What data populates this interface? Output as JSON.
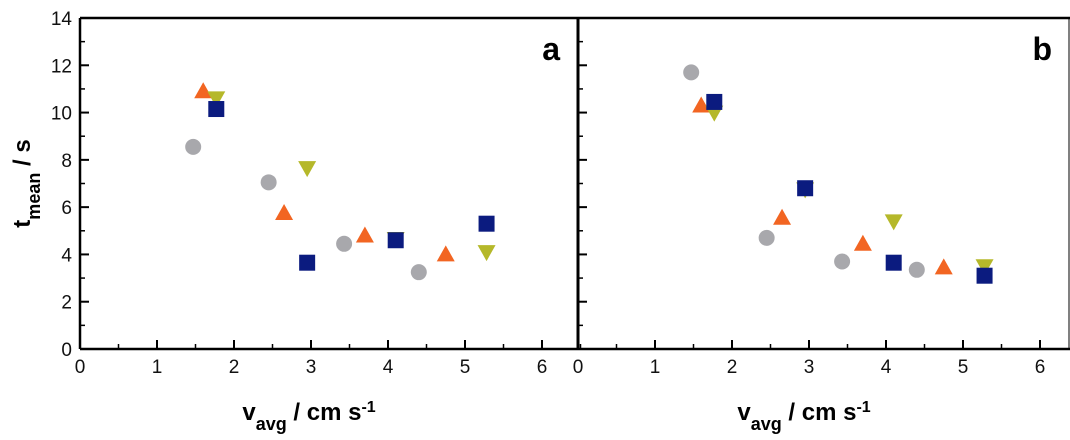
{
  "chart_data": [
    {
      "type": "scatter",
      "panel_label": "a",
      "xlabel": {
        "main": "v",
        "sub": "avg",
        "unit": " / cm s",
        "sup": "-1"
      },
      "ylabel": {
        "main": "t",
        "sub": "mean",
        "unit": " / s"
      },
      "xlim": [
        0,
        6.5
      ],
      "ylim": [
        0,
        14
      ],
      "xticks": [
        0,
        1,
        2,
        3,
        4,
        5,
        6
      ],
      "yticks": [
        0,
        2,
        4,
        6,
        8,
        10,
        12,
        14
      ],
      "grid": false,
      "series": [
        {
          "marker": "circle",
          "color": "#a8a8ac",
          "points": [
            [
              1.47,
              8.55
            ],
            [
              2.45,
              7.05
            ],
            [
              3.43,
              4.45
            ],
            [
              4.4,
              3.25
            ]
          ]
        },
        {
          "marker": "triangle-up",
          "color": "#f26522",
          "points": [
            [
              1.6,
              10.9
            ],
            [
              2.65,
              5.75
            ],
            [
              3.7,
              4.8
            ],
            [
              4.75,
              4.0
            ]
          ]
        },
        {
          "marker": "triangle-down",
          "color": "#b5b82a",
          "points": [
            [
              1.77,
              10.6
            ],
            [
              2.95,
              7.65
            ],
            [
              4.1,
              4.65
            ],
            [
              5.28,
              4.1
            ]
          ]
        },
        {
          "marker": "square",
          "color": "#0b1b7f",
          "points": [
            [
              1.77,
              10.15
            ],
            [
              2.95,
              3.65
            ],
            [
              4.1,
              4.6
            ],
            [
              5.28,
              5.3
            ]
          ]
        }
      ]
    },
    {
      "type": "scatter",
      "panel_label": "b",
      "xlabel": {
        "main": "v",
        "sub": "avg",
        "unit": " / cm s",
        "sup": "-1"
      },
      "xlim": [
        0,
        6.5
      ],
      "ylim": [
        0,
        14
      ],
      "xticks": [
        0,
        1,
        2,
        3,
        4,
        5,
        6
      ],
      "grid": false,
      "series": [
        {
          "marker": "circle",
          "color": "#a8a8ac",
          "points": [
            [
              1.47,
              11.7
            ],
            [
              2.45,
              4.7
            ],
            [
              3.43,
              3.7
            ],
            [
              4.4,
              3.35
            ]
          ]
        },
        {
          "marker": "triangle-up",
          "color": "#f26522",
          "points": [
            [
              1.6,
              10.3
            ],
            [
              2.65,
              5.55
            ],
            [
              3.7,
              4.45
            ],
            [
              4.75,
              3.45
            ]
          ]
        },
        {
          "marker": "triangle-down",
          "color": "#b5b82a",
          "points": [
            [
              1.77,
              10.0
            ],
            [
              2.95,
              6.75
            ],
            [
              4.1,
              5.4
            ],
            [
              5.28,
              3.5
            ]
          ]
        },
        {
          "marker": "square",
          "color": "#0b1b7f",
          "points": [
            [
              1.77,
              10.45
            ],
            [
              2.95,
              6.8
            ],
            [
              4.1,
              3.65
            ],
            [
              5.28,
              3.1
            ]
          ]
        }
      ]
    }
  ]
}
